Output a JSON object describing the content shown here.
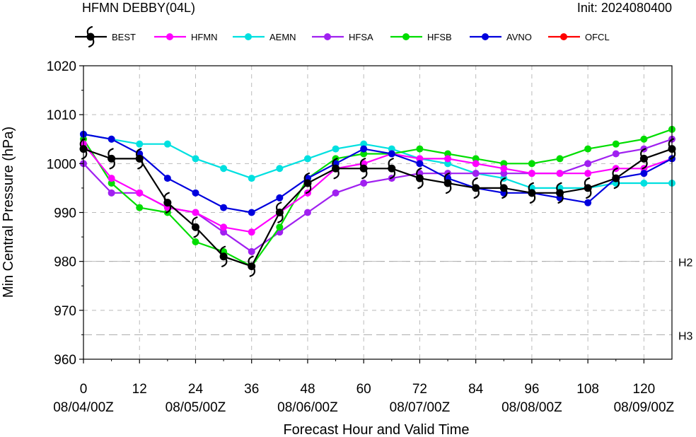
{
  "header": {
    "title": "HFMN DEBBY(04L)",
    "init": "Init: 2024080400"
  },
  "chart_data": {
    "type": "line",
    "xlabel": "Forecast Hour and Valid Time",
    "ylabel": "Min Central Pressure (hPa)",
    "xlim": [
      0,
      126
    ],
    "ylim": [
      960,
      1020
    ],
    "xticks": [
      0,
      12,
      24,
      36,
      48,
      60,
      72,
      84,
      96,
      108,
      120
    ],
    "xtick_dates": [
      {
        "x": 0,
        "label": "08/04/00Z"
      },
      {
        "x": 24,
        "label": "08/05/00Z"
      },
      {
        "x": 48,
        "label": "08/06/00Z"
      },
      {
        "x": 72,
        "label": "08/07/00Z"
      },
      {
        "x": 96,
        "label": "08/08/00Z"
      },
      {
        "x": 120,
        "label": "08/09/00Z"
      }
    ],
    "yticks": [
      960,
      970,
      980,
      990,
      1000,
      1010,
      1020
    ],
    "grid": true,
    "reference_lines": [
      {
        "y": 980,
        "label": "H2"
      },
      {
        "y": 965,
        "label": "H3"
      }
    ],
    "legend_position": "top",
    "series": [
      {
        "name": "BEST",
        "color": "#000000",
        "marker": "hurricane",
        "x": [
          0,
          6,
          12,
          18,
          24,
          30,
          36,
          42,
          48,
          54,
          60,
          66,
          72,
          78,
          84,
          90,
          96,
          102,
          108,
          114,
          120,
          126
        ],
        "values": [
          1003,
          1001,
          1001,
          992,
          987,
          981,
          979,
          990,
          996,
          999,
          999,
          999,
          997,
          996,
          995,
          995,
          994,
          994,
          995,
          997,
          1001,
          1003
        ]
      },
      {
        "name": "HFMN",
        "color": "#ff00ff",
        "marker": "circle",
        "x": [
          0,
          6,
          12,
          18,
          24,
          30,
          36,
          42,
          48,
          54,
          60,
          66,
          72,
          78,
          84,
          90,
          96,
          102,
          108,
          114,
          120,
          126
        ],
        "values": [
          1004,
          997,
          994,
          991,
          990,
          987,
          986,
          990,
          994,
          999,
          1000,
          1002,
          1001,
          1001,
          1000,
          999,
          998,
          998,
          998,
          999,
          999,
          1001
        ]
      },
      {
        "name": "AEMN",
        "color": "#00e0e0",
        "marker": "circle",
        "x": [
          0,
          6,
          12,
          18,
          24,
          30,
          36,
          42,
          48,
          54,
          60,
          66,
          72,
          78,
          84,
          90,
          96,
          102,
          108,
          114,
          120,
          126
        ],
        "values": [
          1006,
          1005,
          1004,
          1004,
          1001,
          999,
          997,
          999,
          1001,
          1003,
          1004,
          1003,
          1001,
          1000,
          998,
          997,
          995,
          995,
          995,
          996,
          996,
          996
        ]
      },
      {
        "name": "HFSA",
        "color": "#a020f0",
        "marker": "circle",
        "x": [
          0,
          6,
          12,
          18,
          24,
          30,
          36,
          42,
          48,
          54,
          60,
          66,
          72,
          78,
          84,
          90,
          96,
          102,
          108,
          114,
          120,
          126
        ],
        "values": [
          1000,
          994,
          994,
          991,
          990,
          986,
          982,
          986,
          990,
          994,
          996,
          997,
          998,
          998,
          998,
          998,
          998,
          998,
          1000,
          1002,
          1003,
          1005
        ]
      },
      {
        "name": "HFSB",
        "color": "#00dd00",
        "marker": "circle",
        "x": [
          0,
          6,
          12,
          18,
          24,
          30,
          36,
          42,
          48,
          54,
          60,
          66,
          72,
          78,
          84,
          90,
          96,
          102,
          108,
          114,
          120,
          126
        ],
        "values": [
          1005,
          996,
          991,
          990,
          984,
          982,
          979,
          987,
          997,
          1001,
          1002,
          1002,
          1003,
          1002,
          1001,
          1000,
          1000,
          1001,
          1003,
          1004,
          1005,
          1007
        ]
      },
      {
        "name": "AVNO",
        "color": "#0000dd",
        "marker": "circle",
        "x": [
          0,
          6,
          12,
          18,
          24,
          30,
          36,
          42,
          48,
          54,
          60,
          66,
          72,
          78,
          84,
          90,
          96,
          102,
          108,
          114,
          120,
          126
        ],
        "values": [
          1006,
          1005,
          1002,
          997,
          994,
          991,
          990,
          993,
          997,
          1000,
          1003,
          1002,
          1000,
          997,
          995,
          994,
          994,
          993,
          992,
          997,
          998,
          1001
        ]
      },
      {
        "name": "OFCL",
        "color": "#ff0000",
        "marker": "circle",
        "x": [],
        "values": []
      }
    ]
  }
}
